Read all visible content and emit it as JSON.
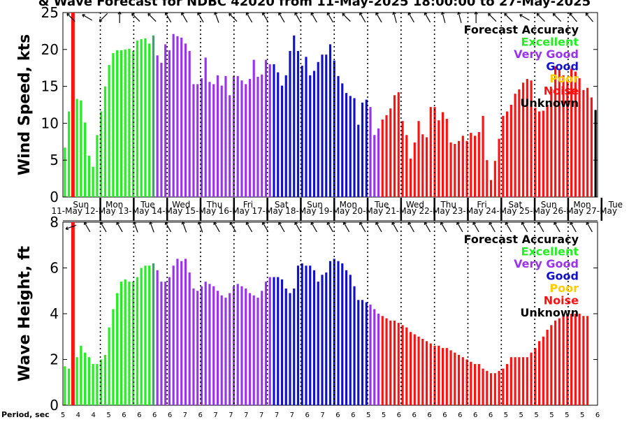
{
  "chart_data": {
    "type": "bar",
    "title": "& Wave Forecast for NDBC 42020 from 11-May-2025 18:00:00 to 27-May-2025",
    "x_start": "2025-05-11 18:00",
    "x_end": "2025-05-27 18:00",
    "day_labels": [
      {
        "weekday": "Sun",
        "date": "11-May"
      },
      {
        "weekday": "Mon",
        "date": "12-May"
      },
      {
        "weekday": "Tue",
        "date": "13-May"
      },
      {
        "weekday": "Wed",
        "date": "14-May"
      },
      {
        "weekday": "Thu",
        "date": "15-May"
      },
      {
        "weekday": "Fri",
        "date": "16-May"
      },
      {
        "weekday": "Sat",
        "date": "17-May"
      },
      {
        "weekday": "Sun",
        "date": "18-May"
      },
      {
        "weekday": "Mon",
        "date": "19-May"
      },
      {
        "weekday": "Tue",
        "date": "20-May"
      },
      {
        "weekday": "Wed",
        "date": "21-May"
      },
      {
        "weekday": "Thu",
        "date": "22-May"
      },
      {
        "weekday": "Fri",
        "date": "23-May"
      },
      {
        "weekday": "Sat",
        "date": "24-May"
      },
      {
        "weekday": "Sun",
        "date": "25-May"
      },
      {
        "weekday": "Mon",
        "date": "26-May"
      },
      {
        "weekday": "Tue",
        "date": "27-May"
      }
    ],
    "accuracy_colors": {
      "Excellent": "#22ee22",
      "Excellent-fade": "#4a9a6a",
      "Very Good": "#9933ee",
      "Good": "#1111cc",
      "Poor": "#ffcc00",
      "Noise": "#ff1111",
      "Unknown": "#000000"
    },
    "legend": {
      "title": "Forecast Accuracy",
      "entries": [
        {
          "label": "Excellent",
          "color": "#22ee22"
        },
        {
          "label": "Very Good",
          "color": "#9933ee"
        },
        {
          "label": "Good",
          "color": "#1111cc"
        },
        {
          "label": "Poor",
          "color": "#ffcc00"
        },
        {
          "label": "Noise",
          "color": "#ff1111"
        },
        {
          "label": "Unknown",
          "color": "#000000"
        }
      ]
    },
    "current_time_marker_color": "#ff1111",
    "wind": {
      "ylabel": "Wind Speed, kts",
      "ylim": [
        0,
        25
      ],
      "yticks": [
        0,
        5,
        10,
        15,
        20,
        25
      ],
      "values": [
        6.7,
        11.6,
        17.0,
        13.3,
        13.1,
        10.1,
        5.6,
        4.1,
        8.4,
        11.6,
        15.0,
        17.9,
        19.5,
        19.9,
        19.9,
        20.0,
        20.1,
        19.8,
        21.2,
        21.4,
        21.5,
        20.8,
        21.9,
        19.2,
        18.2,
        20.7,
        19.9,
        22.1,
        21.8,
        21.6,
        20.8,
        19.8,
        15.3,
        15.3,
        16.1,
        18.9,
        15.6,
        15.3,
        16.5,
        15.1,
        16.4,
        13.8,
        16.4,
        16.4,
        15.8,
        15.3,
        16.0,
        18.6,
        16.3,
        16.6,
        18.6,
        18.0,
        18.0,
        16.9,
        15.1,
        16.5,
        19.8,
        21.9,
        19.8,
        17.8,
        19.0,
        16.5,
        17.1,
        18.3,
        19.3,
        19.3,
        20.7,
        18.5,
        16.4,
        15.4,
        14.1,
        13.7,
        13.4,
        9.8,
        12.8,
        13.2,
        12.2,
        8.4,
        9.3,
        10.5,
        11.1,
        12.0,
        13.8,
        14.2,
        10.3,
        8.4,
        5.2,
        7.4,
        10.3,
        8.5,
        8.1,
        12.2,
        12.2,
        10.4,
        11.5,
        10.6,
        7.4,
        7.2,
        7.6,
        8.3,
        7.6,
        8.7,
        8.3,
        8.8,
        11.0,
        5.0,
        2.3,
        4.9,
        7.9,
        11.0,
        11.6,
        12.5,
        14.0,
        14.6,
        15.5,
        16.0,
        15.8,
        12.1,
        11.6,
        11.7,
        12.5,
        14.7,
        17.7,
        17.2,
        16.5,
        15.8,
        17.4,
        17.0,
        16.1,
        14.5,
        14.8,
        13.5,
        11.8
      ],
      "colors": [
        "Excellent",
        "Excellent",
        "Noise",
        "Excellent",
        "Excellent",
        "Excellent",
        "Excellent",
        "Excellent",
        "Excellent",
        "Excellent",
        "Excellent",
        "Excellent",
        "Excellent",
        "Excellent",
        "Excellent",
        "Excellent",
        "Excellent",
        "Excellent",
        "Excellent",
        "Excellent",
        "Excellent",
        "Excellent",
        "Excellent-fade",
        "Very Good",
        "Very Good",
        "Very Good",
        "Very Good",
        "Very Good",
        "Very Good",
        "Very Good",
        "Very Good",
        "Very Good",
        "Very Good",
        "Very Good",
        "Very Good",
        "Very Good",
        "Very Good",
        "Very Good",
        "Very Good",
        "Very Good",
        "Very Good",
        "Very Good",
        "Very Good",
        "Very Good",
        "Very Good",
        "Very Good",
        "Very Good",
        "Very Good",
        "Very Good",
        "Very Good",
        "Very Good",
        "Very Good",
        "Good",
        "Good",
        "Good",
        "Good",
        "Good",
        "Good",
        "Good",
        "Good",
        "Good",
        "Good",
        "Good",
        "Good",
        "Good",
        "Good",
        "Good",
        "Good",
        "Good",
        "Good",
        "Good",
        "Good",
        "Good",
        "Good",
        "Good",
        "Good",
        "Very Good",
        "Very Good",
        "Very Good",
        "Noise",
        "Noise",
        "Noise",
        "Noise",
        "Noise",
        "Noise",
        "Noise",
        "Noise",
        "Noise",
        "Noise",
        "Noise",
        "Noise",
        "Noise",
        "Noise",
        "Noise",
        "Noise",
        "Noise",
        "Noise",
        "Noise",
        "Noise",
        "Noise",
        "Noise",
        "Noise",
        "Noise",
        "Noise",
        "Noise",
        "Noise",
        "Noise",
        "Noise",
        "Noise",
        "Noise",
        "Noise",
        "Noise",
        "Noise",
        "Noise",
        "Noise",
        "Noise",
        "Noise",
        "Noise",
        "Noise",
        "Noise",
        "Noise",
        "Noise",
        "Noise",
        "Noise",
        "Noise",
        "Noise",
        "Noise",
        "Noise",
        "Noise",
        "Noise",
        "Noise",
        "Noise"
      ]
    },
    "wave": {
      "ylabel": "Wave Height, ft",
      "ylim": [
        0,
        8
      ],
      "yticks": [
        0,
        2,
        4,
        6,
        8
      ],
      "values": [
        1.7,
        1.6,
        6.3,
        2.1,
        2.6,
        2.3,
        2.1,
        1.8,
        1.8,
        2.0,
        2.2,
        3.4,
        4.2,
        4.9,
        5.4,
        5.5,
        5.4,
        5.4,
        5.6,
        6.0,
        6.1,
        6.1,
        6.2,
        5.9,
        5.4,
        5.4,
        5.6,
        6.1,
        6.4,
        6.3,
        6.4,
        5.8,
        5.1,
        5.0,
        5.2,
        5.4,
        5.3,
        5.2,
        5.0,
        4.8,
        4.7,
        4.9,
        5.2,
        5.3,
        5.2,
        5.1,
        4.9,
        4.8,
        4.7,
        5.0,
        5.4,
        5.6,
        5.6,
        5.6,
        5.5,
        5.1,
        4.9,
        5.1,
        6.1,
        6.2,
        6.1,
        6.1,
        5.9,
        5.4,
        5.7,
        5.8,
        6.3,
        6.4,
        6.3,
        6.2,
        5.9,
        5.7,
        5.2,
        4.6,
        4.6,
        4.5,
        4.4,
        4.2,
        4.0,
        3.9,
        3.8,
        3.7,
        3.7,
        3.6,
        3.5,
        3.4,
        3.2,
        3.1,
        3.0,
        2.9,
        2.8,
        2.7,
        2.6,
        2.6,
        2.5,
        2.5,
        2.4,
        2.3,
        2.2,
        2.1,
        2.0,
        1.9,
        1.8,
        1.8,
        1.6,
        1.5,
        1.4,
        1.4,
        1.5,
        1.6,
        1.8,
        2.1,
        2.1,
        2.1,
        2.1,
        2.1,
        2.3,
        2.5,
        2.8,
        3.0,
        3.3,
        3.5,
        3.7,
        3.8,
        3.9,
        3.9,
        4.0,
        4.0,
        4.0,
        3.9,
        3.9
      ],
      "colors": [
        "Excellent",
        "Excellent",
        "Noise",
        "Excellent",
        "Excellent",
        "Excellent",
        "Excellent",
        "Excellent",
        "Excellent",
        "Excellent",
        "Excellent",
        "Excellent",
        "Excellent",
        "Excellent",
        "Excellent",
        "Excellent",
        "Excellent",
        "Excellent",
        "Excellent",
        "Excellent",
        "Excellent",
        "Excellent",
        "Excellent-fade",
        "Very Good",
        "Very Good",
        "Very Good",
        "Very Good",
        "Very Good",
        "Very Good",
        "Very Good",
        "Very Good",
        "Very Good",
        "Very Good",
        "Very Good",
        "Very Good",
        "Very Good",
        "Very Good",
        "Very Good",
        "Very Good",
        "Very Good",
        "Very Good",
        "Very Good",
        "Very Good",
        "Very Good",
        "Very Good",
        "Very Good",
        "Very Good",
        "Very Good",
        "Very Good",
        "Very Good",
        "Very Good",
        "Very Good",
        "Good",
        "Good",
        "Good",
        "Good",
        "Good",
        "Good",
        "Good",
        "Good",
        "Good",
        "Good",
        "Good",
        "Good",
        "Good",
        "Good",
        "Good",
        "Good",
        "Good",
        "Good",
        "Good",
        "Good",
        "Good",
        "Good",
        "Good",
        "Good",
        "Very Good",
        "Very Good",
        "Very Good",
        "Noise",
        "Noise",
        "Noise",
        "Noise",
        "Noise",
        "Noise",
        "Noise",
        "Noise",
        "Noise",
        "Noise",
        "Noise",
        "Noise",
        "Noise",
        "Noise",
        "Noise",
        "Noise",
        "Noise",
        "Noise",
        "Noise",
        "Noise",
        "Noise",
        "Noise",
        "Noise",
        "Noise",
        "Noise",
        "Noise",
        "Noise",
        "Noise",
        "Noise",
        "Noise",
        "Noise",
        "Noise",
        "Noise",
        "Noise",
        "Noise",
        "Noise",
        "Noise",
        "Noise",
        "Noise",
        "Noise",
        "Noise",
        "Noise",
        "Noise",
        "Noise",
        "Noise",
        "Noise",
        "Noise",
        "Noise",
        "Noise",
        "Noise",
        "Noise",
        "Noise",
        "Noise"
      ]
    },
    "period": {
      "label": "Period, sec",
      "values": [
        5,
        4,
        4,
        5,
        6,
        6,
        6,
        6,
        7,
        6,
        7,
        7,
        7,
        7,
        7,
        7,
        6,
        7,
        6,
        6,
        5,
        5,
        6,
        6,
        6,
        6,
        6,
        6,
        6,
        5,
        5,
        5,
        5,
        5,
        5,
        6
      ]
    },
    "wind_arrows_deg": [
      315,
      300,
      225,
      0,
      315,
      315,
      330,
      330,
      330,
      340,
      315,
      330,
      330,
      330,
      330,
      330,
      330,
      315,
      330,
      330,
      345,
      330,
      330,
      345,
      345,
      0,
      315,
      315,
      300,
      315,
      315,
      320,
      320
    ],
    "wave_arrows_deg": [
      250,
      330,
      330,
      330,
      340,
      340,
      330,
      340,
      340,
      330,
      330,
      330,
      330,
      330,
      330,
      330,
      330,
      330,
      330,
      330,
      330,
      330,
      330,
      330,
      330,
      330,
      330,
      330,
      330,
      330,
      330,
      330,
      330
    ]
  }
}
